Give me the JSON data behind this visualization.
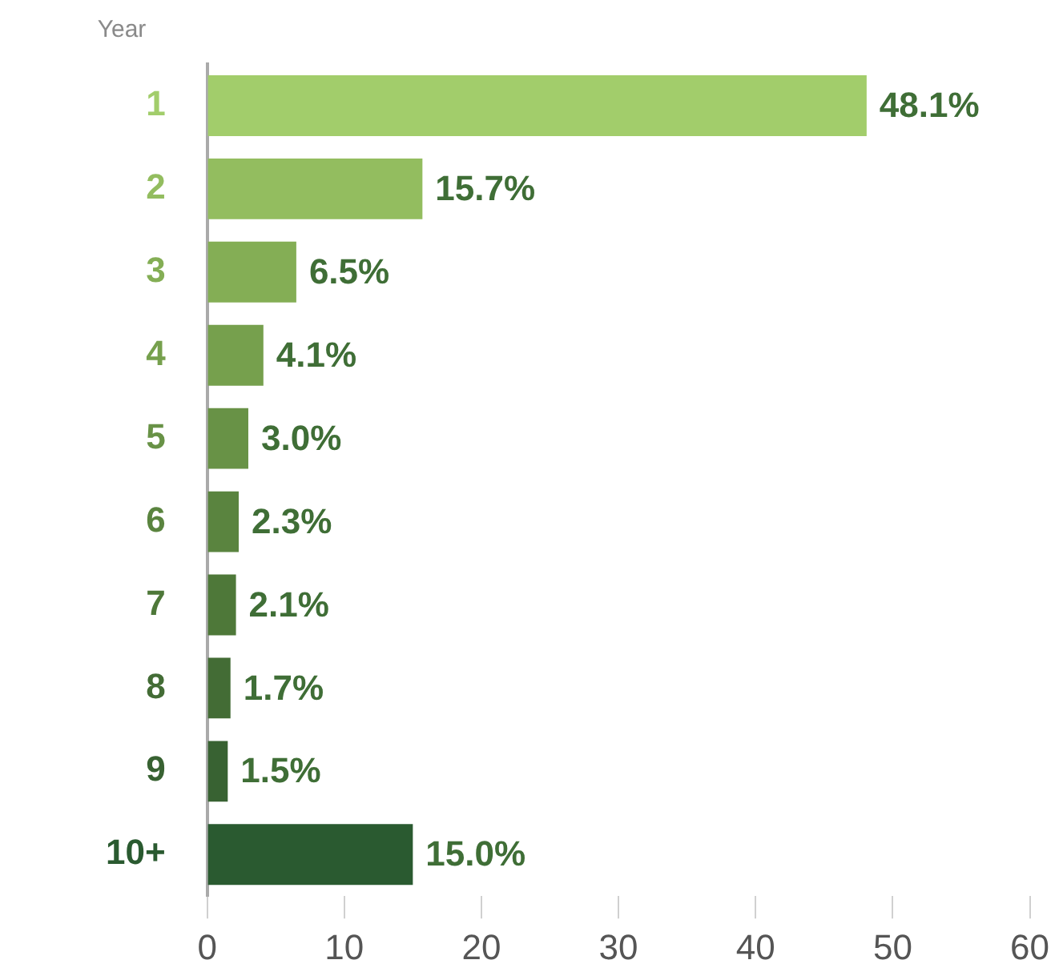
{
  "chart_data": {
    "type": "bar",
    "orientation": "horizontal",
    "ylabel": "Year",
    "categories": [
      "1",
      "2",
      "3",
      "4",
      "5",
      "6",
      "7",
      "8",
      "9",
      "10+"
    ],
    "values": [
      48.1,
      15.7,
      6.5,
      4.1,
      3.0,
      2.3,
      2.1,
      1.7,
      1.5,
      15.0
    ],
    "colors": [
      "#a2cd6b",
      "#93bd5f",
      "#84ae55",
      "#76a04d",
      "#689246",
      "#5a843f",
      "#4e7839",
      "#436c35",
      "#386232",
      "#2a5a30"
    ],
    "value_labels": [
      "48.1%",
      "15.7%",
      "6.5%",
      "4.1%",
      "3.0%",
      "2.3%",
      "2.1%",
      "1.7%",
      "1.5%",
      "15.0%"
    ],
    "xlim": [
      0,
      60
    ],
    "xticks": [
      0,
      10,
      20,
      30,
      40,
      50,
      60
    ],
    "grid": false,
    "legend": false
  }
}
